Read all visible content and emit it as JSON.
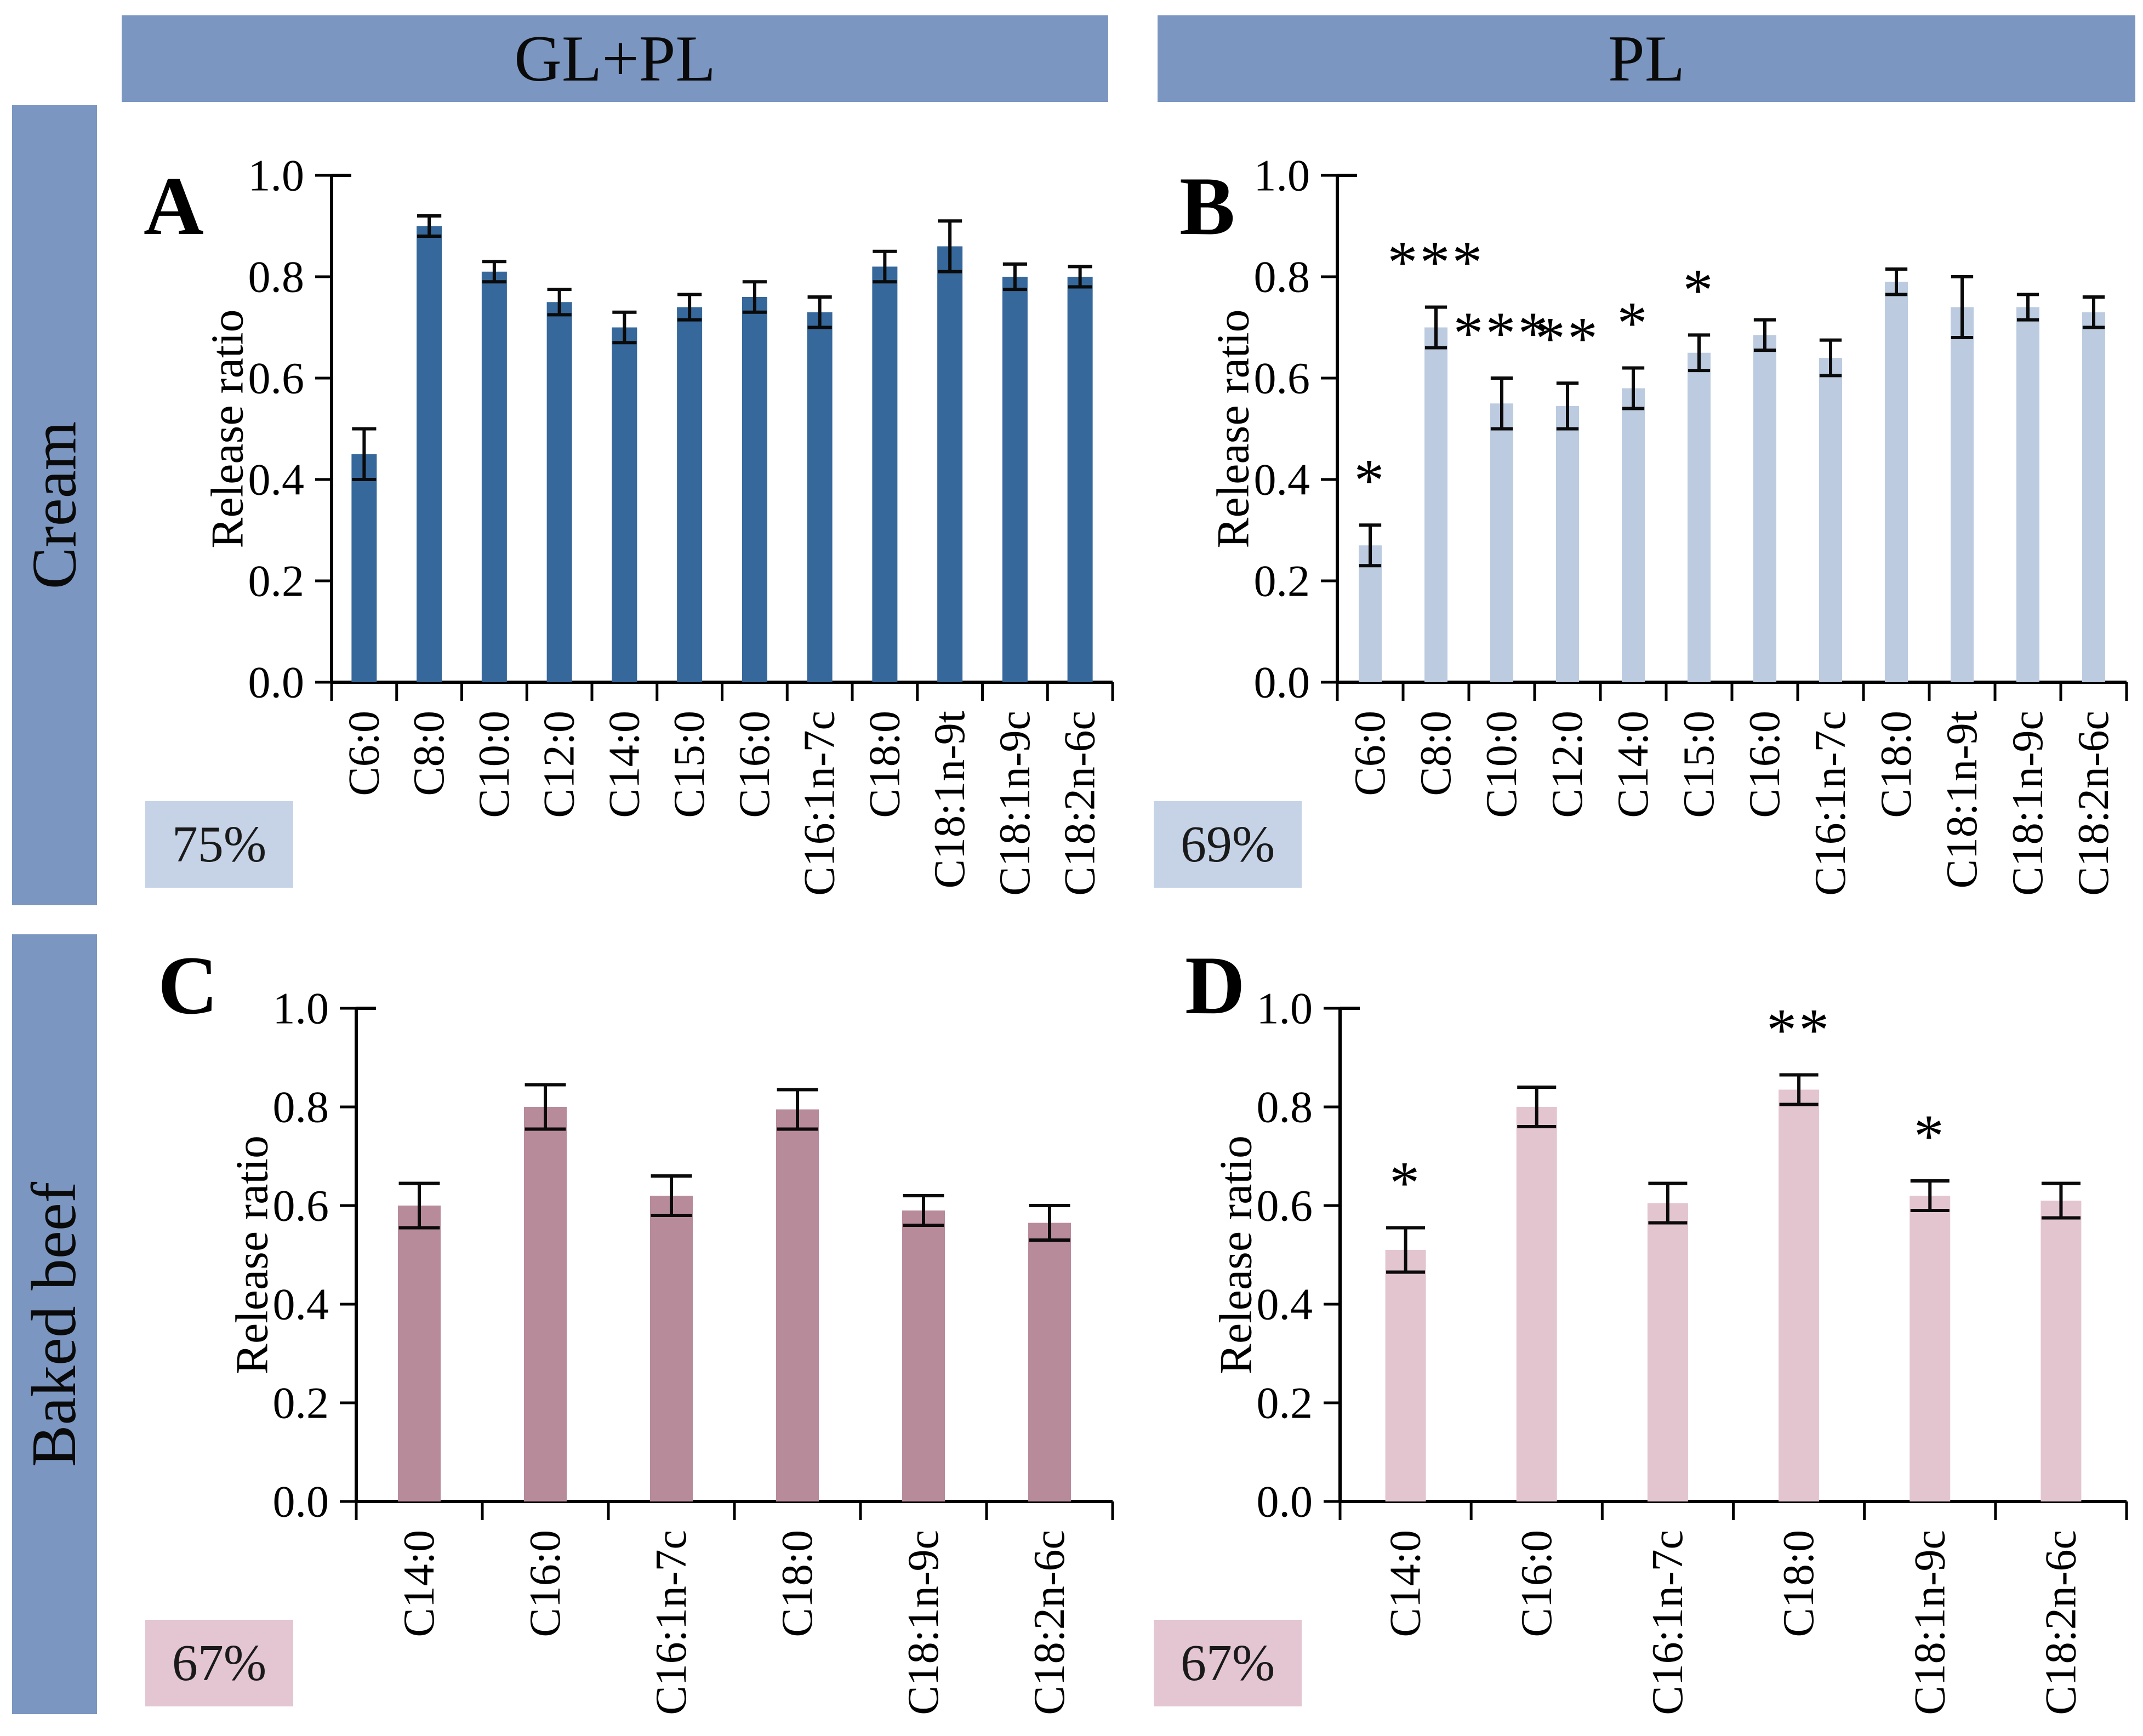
{
  "header": {
    "columns": [
      "GL+PL",
      "PL"
    ]
  },
  "rows": [
    {
      "label": "Cream"
    },
    {
      "label": "Baked beef"
    }
  ],
  "colors": {
    "banner": "#7b96c1",
    "dark_blue_bar": "#36689b",
    "light_blue_bar": "#bccbe0",
    "dark_pink_bar": "#b88b9b",
    "light_pink_bar": "#e3c5d0",
    "blue_badge": "#c6d3e7",
    "pink_badge": "#e3c6d1"
  },
  "chart_data": [
    {
      "panel": "A",
      "row": "Cream",
      "column": "GL+PL",
      "type": "bar",
      "ylabel": "Release ratio",
      "ylim": [
        0.0,
        1.0
      ],
      "yticks": [
        "1.0",
        "0.8",
        "0.6",
        "0.4",
        "0.2",
        "0.0"
      ],
      "categories": [
        "C6:0",
        "C8:0",
        "C10:0",
        "C12:0",
        "C14:0",
        "C15:0",
        "C16:0",
        "C16:1n-7c",
        "C18:0",
        "C18:1n-9t",
        "C18:1n-9c",
        "C18:2n-6c"
      ],
      "values": [
        0.45,
        0.9,
        0.81,
        0.75,
        0.7,
        0.74,
        0.76,
        0.73,
        0.82,
        0.86,
        0.8,
        0.8
      ],
      "errors": [
        0.05,
        0.02,
        0.02,
        0.025,
        0.03,
        0.025,
        0.03,
        0.03,
        0.03,
        0.05,
        0.025,
        0.02
      ],
      "stars": [
        "",
        "",
        "",
        "",
        "",
        "",
        "",
        "",
        "",
        "",
        "",
        ""
      ],
      "badge": "75%",
      "bar_color": "#36689b",
      "badge_color": "#c6d3e7",
      "star_color": "#1a1a1a"
    },
    {
      "panel": "B",
      "row": "Cream",
      "column": "PL",
      "type": "bar",
      "ylabel": "Release ratio",
      "ylim": [
        0.0,
        1.0
      ],
      "yticks": [
        "1.0",
        "0.8",
        "0.6",
        "0.4",
        "0.2",
        "0.0"
      ],
      "categories": [
        "C6:0",
        "C8:0",
        "C10:0",
        "C12:0",
        "C14:0",
        "C15:0",
        "C16:0",
        "C16:1n-7c",
        "C18:0",
        "C18:1n-9t",
        "C18:1n-9c",
        "C18:2n-6c"
      ],
      "values": [
        0.27,
        0.7,
        0.55,
        0.545,
        0.58,
        0.65,
        0.685,
        0.64,
        0.79,
        0.74,
        0.74,
        0.73
      ],
      "errors": [
        0.04,
        0.04,
        0.05,
        0.045,
        0.04,
        0.035,
        0.03,
        0.035,
        0.025,
        0.06,
        0.025,
        0.03
      ],
      "stars": [
        "*",
        "***",
        "***",
        "**",
        "*",
        "*",
        "",
        "",
        "",
        "",
        "",
        ""
      ],
      "badge": "69%",
      "bar_color": "#bccbe0",
      "badge_color": "#c6d3e7",
      "star_color": "#1a1a1a"
    },
    {
      "panel": "C",
      "row": "Baked beef",
      "column": "GL+PL",
      "type": "bar",
      "ylabel": "Release ratio",
      "ylim": [
        0.0,
        1.0
      ],
      "yticks": [
        "1.0",
        "0.8",
        "0.6",
        "0.4",
        "0.2",
        "0.0"
      ],
      "categories": [
        "C14:0",
        "C16:0",
        "C16:1n-7c",
        "C18:0",
        "C18:1n-9c",
        "C18:2n-6c"
      ],
      "values": [
        0.6,
        0.8,
        0.62,
        0.795,
        0.59,
        0.565
      ],
      "errors": [
        0.045,
        0.045,
        0.04,
        0.04,
        0.03,
        0.035
      ],
      "stars": [
        "",
        "",
        "",
        "",
        "",
        ""
      ],
      "badge": "67%",
      "bar_color": "#b88b9b",
      "badge_color": "#e3c6d1",
      "star_color": "#404040"
    },
    {
      "panel": "D",
      "row": "Baked beef",
      "column": "PL",
      "type": "bar",
      "ylabel": "Release ratio",
      "ylim": [
        0.0,
        1.0
      ],
      "yticks": [
        "1.0",
        "0.8",
        "0.6",
        "0.4",
        "0.2",
        "0.0"
      ],
      "categories": [
        "C14:0",
        "C16:0",
        "C16:1n-7c",
        "C18:0",
        "C18:1n-9c",
        "C18:2n-6c"
      ],
      "values": [
        0.51,
        0.8,
        0.605,
        0.835,
        0.62,
        0.61
      ],
      "errors": [
        0.045,
        0.04,
        0.04,
        0.03,
        0.03,
        0.035
      ],
      "stars": [
        "*",
        "",
        "",
        "**",
        "*",
        ""
      ],
      "badge": "67%",
      "bar_color": "#e3c5d0",
      "badge_color": "#e3c6d1",
      "star_color": "#404040"
    }
  ]
}
